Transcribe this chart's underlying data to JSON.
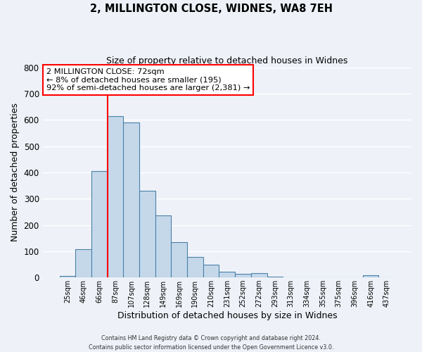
{
  "title": "2, MILLINGTON CLOSE, WIDNES, WA8 7EH",
  "subtitle": "Size of property relative to detached houses in Widnes",
  "xlabel": "Distribution of detached houses by size in Widnes",
  "ylabel": "Number of detached properties",
  "bar_color": "#c5d8ea",
  "bar_edge_color": "#4a80a8",
  "background_color": "#eef2f8",
  "grid_color": "#ffffff",
  "ylim": [
    0,
    800
  ],
  "yticks": [
    0,
    100,
    200,
    300,
    400,
    500,
    600,
    700,
    800
  ],
  "categories": [
    "25sqm",
    "46sqm",
    "66sqm",
    "87sqm",
    "107sqm",
    "128sqm",
    "149sqm",
    "169sqm",
    "190sqm",
    "210sqm",
    "231sqm",
    "252sqm",
    "272sqm",
    "293sqm",
    "313sqm",
    "334sqm",
    "355sqm",
    "375sqm",
    "396sqm",
    "416sqm",
    "437sqm"
  ],
  "values": [
    5,
    107,
    405,
    615,
    590,
    330,
    237,
    135,
    78,
    50,
    22,
    13,
    17,
    3,
    0,
    0,
    0,
    0,
    0,
    8,
    0
  ],
  "red_line_index": 2.5,
  "annotation_line1": "2 MILLINGTON CLOSE: 72sqm",
  "annotation_line2": "← 8% of detached houses are smaller (195)",
  "annotation_line3": "92% of semi-detached houses are larger (2,381) →",
  "footer1": "Contains HM Land Registry data © Crown copyright and database right 2024.",
  "footer2": "Contains public sector information licensed under the Open Government Licence v3.0."
}
